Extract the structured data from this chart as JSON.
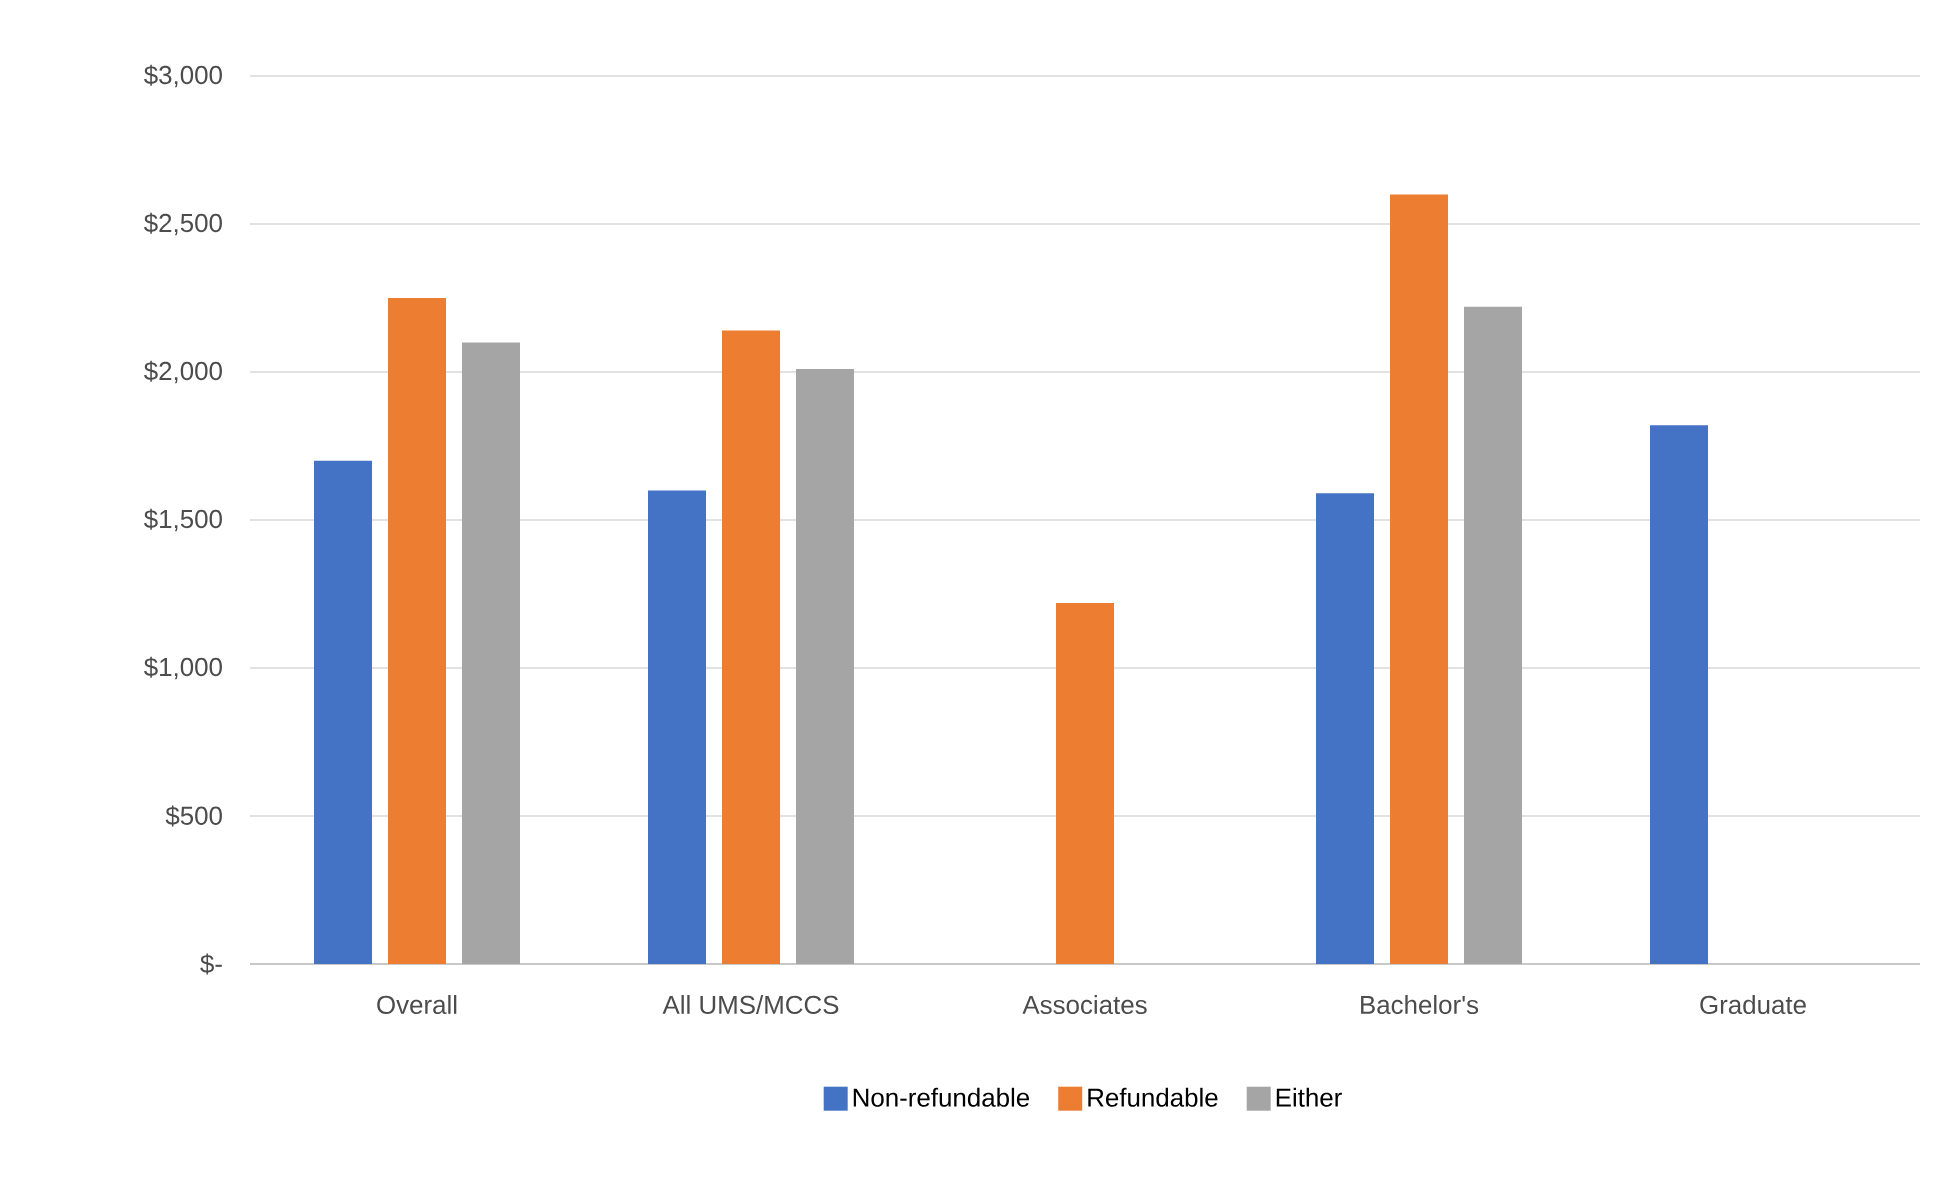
{
  "chart_data": {
    "type": "bar",
    "categories": [
      "Overall",
      "All UMS/MCCS",
      "Associates",
      "Bachelor's",
      "Graduate"
    ],
    "series": [
      {
        "name": "Non-refundable",
        "color": "#4472c4",
        "values": [
          1700,
          1600,
          null,
          1590,
          1820
        ]
      },
      {
        "name": "Refundable",
        "color": "#ed7d31",
        "values": [
          2250,
          2140,
          1220,
          2600,
          null
        ]
      },
      {
        "name": "Either",
        "color": "#a5a5a5",
        "values": [
          2100,
          2010,
          null,
          2220,
          null
        ]
      }
    ],
    "ylim": [
      0,
      3000
    ],
    "yticks": [
      {
        "value": 0,
        "label": "$-"
      },
      {
        "value": 500,
        "label": "$500"
      },
      {
        "value": 1000,
        "label": "$1,000"
      },
      {
        "value": 1500,
        "label": "$1,500"
      },
      {
        "value": 2000,
        "label": "$2,000"
      },
      {
        "value": 2500,
        "label": "$2,500"
      },
      {
        "value": 3000,
        "label": "$3,000"
      }
    ],
    "grid": "y",
    "legend": "bottom"
  }
}
